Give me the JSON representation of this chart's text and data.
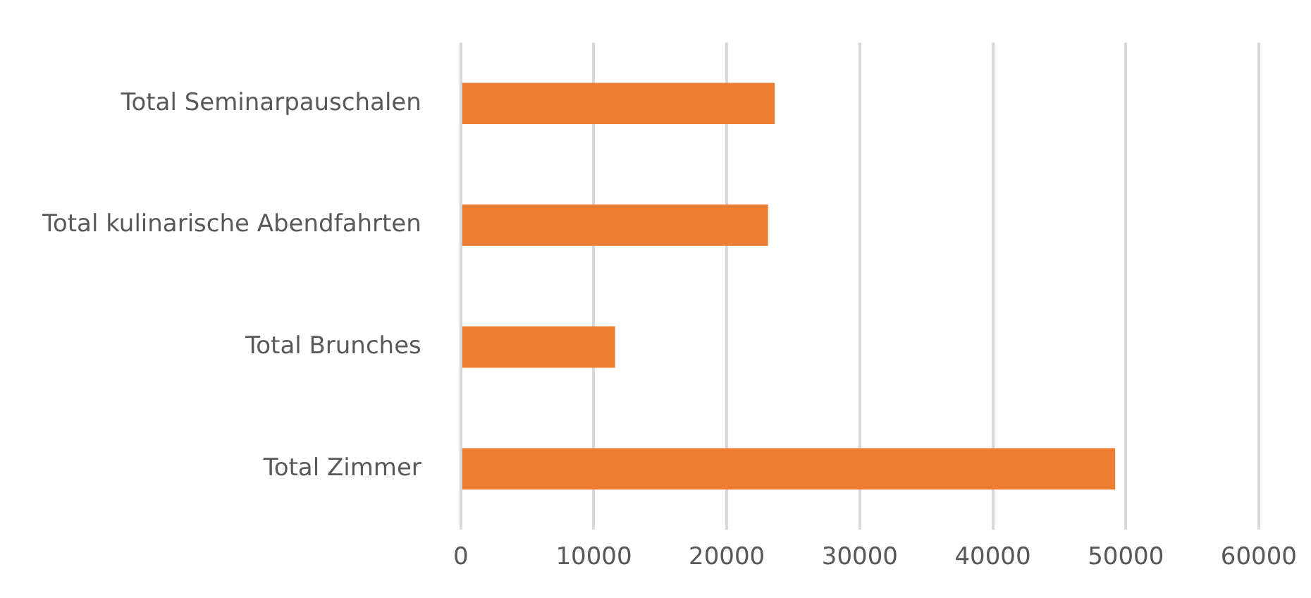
{
  "chart_data": {
    "type": "bar",
    "orientation": "horizontal",
    "categories": [
      "Total Seminarpauschalen",
      "Total kulinarische Abendfahrten",
      "Total Brunches",
      "Total Zimmer"
    ],
    "values": [
      23600,
      23100,
      11600,
      49200
    ],
    "color": "#ed7d31",
    "xlim": [
      0,
      60000
    ],
    "xticks": [
      0,
      10000,
      20000,
      30000,
      40000,
      50000,
      60000
    ],
    "grid": "x",
    "legend": false
  }
}
